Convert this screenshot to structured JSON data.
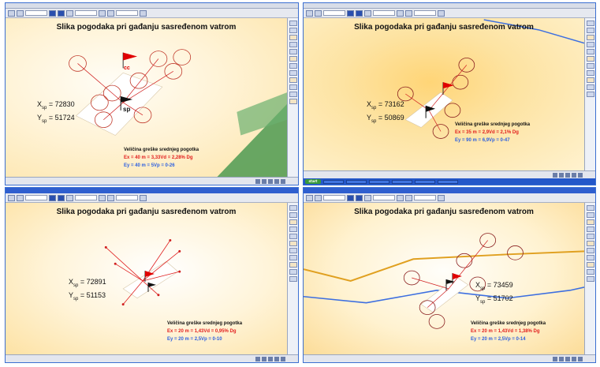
{
  "panels": [
    {
      "title": "Slika pogodaka pri gađanju sasređenom vatrom",
      "x_label": "X",
      "x_sub": "sp",
      "x_value": "= 72830",
      "y_label": "Y",
      "y_sub": "sp",
      "y_value": "= 51724",
      "error_title": "Veličina greške srednjeg pogotka",
      "ex": "Ex = 40 m = 3,33Vd = 2,28% Dg",
      "ey": "Ey = 40 m = 5Vp = 0-26",
      "flag_cc": "cc",
      "flag_sp": "sp"
    },
    {
      "title": "Slika pogodaka pri gađanju sasređenom vatrom",
      "x_label": "X",
      "x_sub": "sp",
      "x_value": "= 73162",
      "y_label": "Y",
      "y_sub": "sp",
      "y_value": "= 50869",
      "error_title": "Veličina greške srednjeg pogotka",
      "ex": "Ex = 35 m = 2,9Vd = 2,1% Dg",
      "ey": "Ey = 90 m = 6,9Vp = 0-47"
    },
    {
      "title": "Slika pogodaka pri gađanju sasređenom vatrom",
      "x_label": "X",
      "x_sub": "sp",
      "x_value": "= 72891",
      "y_label": "Y",
      "y_sub": "sp",
      "y_value": "= 51153",
      "error_title": "Veličina greške srednjeg pogotka",
      "ex": "Ex = 20 m = 1,43Vd = 0,95% Dg",
      "ey": "Ey = 20 m = 2,5Vp = 0-10"
    },
    {
      "title": "Slika pogodaka pri gađanju sasređenom vatrom",
      "x_label": "X",
      "x_sub": "sp",
      "x_value": "= 73459",
      "y_label": "Y",
      "y_sub": "sp",
      "y_value": "= 51702",
      "error_title": "Veličina greške srednjeg pogotka",
      "ex": "Ex = 20 m = 1,43Vd = 1,38% Dg",
      "ey": "Ey = 20 m = 2,5Vp = 0-14"
    }
  ],
  "taskbar": {
    "start_label": "start"
  },
  "colors": {
    "ex": "#e11d1d",
    "ey": "#2b5fe0",
    "hit_circle": "#c0392b",
    "flag": "#e00000",
    "terrain": "#3f8f45",
    "route_orange": "#e0a020",
    "route_blue": "#3d6fe0"
  },
  "icons": {
    "toolbar": "toolbar-button-icon",
    "sidebar": "map-tool-icon",
    "status": "status-icon"
  }
}
